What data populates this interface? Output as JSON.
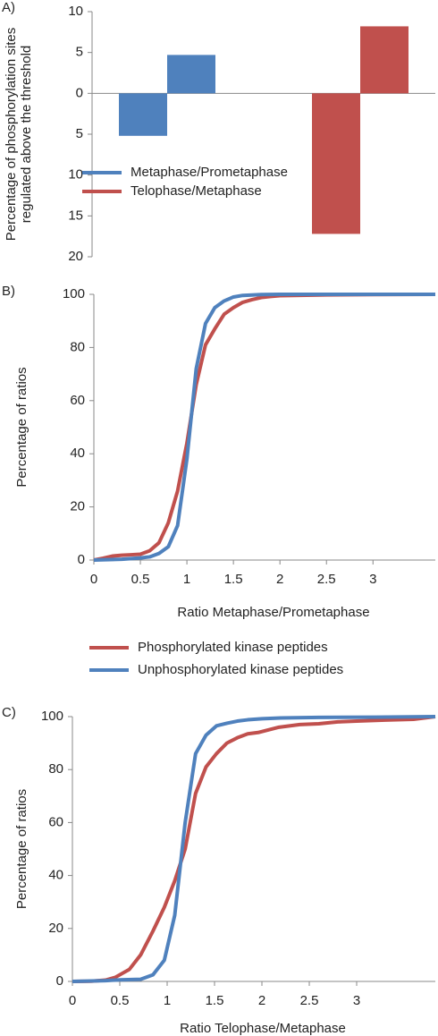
{
  "chart_data": [
    {
      "type": "bar",
      "panel_label": "A)",
      "ylabel": [
        "Percentage of phosphorylation sites",
        "regulated above the threshold"
      ],
      "categories": [
        null,
        null,
        null,
        null
      ],
      "series": [
        {
          "name": "Metaphase/Prometaphase",
          "color": "#4f81bd",
          "values": [
            -5.2,
            4.7,
            null,
            null
          ]
        },
        {
          "name": "Telophase/Metaphase",
          "color": "#c0504d",
          "values": [
            null,
            null,
            -17.2,
            8.2
          ]
        }
      ],
      "ylim": [
        -20,
        10
      ],
      "yticks": [
        10,
        5,
        0,
        {
          "value": -5,
          "label": "5"
        },
        {
          "value": -10,
          "label": "10"
        },
        {
          "value": -15,
          "label": "15"
        },
        {
          "value": -20,
          "label": "20"
        }
      ]
    },
    {
      "type": "line",
      "panel_label": "B)",
      "xlabel": "Ratio Metaphase/Prometaphase",
      "ylabel": "Percentage of ratios",
      "series": [
        {
          "name": "Phosphorylated kinase peptides",
          "color": "#c0504d",
          "x": [
            0,
            0.1,
            0.2,
            0.3,
            0.4,
            0.5,
            0.6,
            0.7,
            0.8,
            0.9,
            1.0,
            1.1,
            1.2,
            1.3,
            1.4,
            1.5,
            1.6,
            1.7,
            1.8,
            1.9,
            2.0,
            2.5,
            3.0,
            3.67
          ],
          "values": [
            0,
            0.7,
            1.5,
            1.8,
            2,
            2.2,
            3.5,
            6.5,
            14,
            26,
            44,
            66,
            81,
            87,
            92.5,
            95,
            97,
            98,
            98.8,
            99.2,
            99.5,
            99.8,
            99.9,
            100
          ]
        },
        {
          "name": "Unphosphorylated kinase peptides",
          "color": "#4f81bd",
          "x": [
            0,
            0.3,
            0.5,
            0.6,
            0.7,
            0.8,
            0.9,
            1.0,
            1.1,
            1.2,
            1.3,
            1.4,
            1.5,
            1.6,
            1.8,
            2.0,
            3.67
          ],
          "values": [
            0,
            0.3,
            0.8,
            1.2,
            2.5,
            5,
            13,
            38,
            72,
            89,
            95,
            97.5,
            99,
            99.6,
            99.9,
            100,
            100
          ]
        }
      ],
      "xlim": [
        0,
        3.67
      ],
      "xticks": [
        0,
        0.5,
        1,
        1.5,
        2,
        2.5,
        3
      ],
      "ylim": [
        0,
        100
      ],
      "yticks": [
        0,
        20,
        40,
        60,
        80,
        100
      ]
    },
    {
      "type": "line",
      "panel_label": "C)",
      "xlabel": "Ratio Telophase/Metaphase",
      "ylabel": "Percentage of ratios",
      "series": [
        {
          "color": "#c0504d",
          "x": [
            0,
            0.2,
            0.35,
            0.45,
            0.6,
            0.72,
            0.85,
            0.97,
            1.08,
            1.19,
            1.3,
            1.41,
            1.52,
            1.63,
            1.74,
            1.85,
            1.96,
            2.07,
            2.18,
            2.4,
            2.6,
            2.8,
            3.0,
            3.3,
            3.6,
            3.83
          ],
          "values": [
            0,
            0.1,
            0.5,
            1.5,
            4.5,
            10,
            19,
            28,
            38,
            50,
            71,
            81,
            86,
            90,
            92,
            93.5,
            94,
            95,
            96,
            97,
            97.3,
            98,
            98.3,
            98.7,
            99,
            100
          ]
        },
        {
          "color": "#4f81bd",
          "x": [
            0,
            0.35,
            0.5,
            0.72,
            0.85,
            0.97,
            1.08,
            1.19,
            1.3,
            1.41,
            1.52,
            1.63,
            1.74,
            1.85,
            2.0,
            2.2,
            2.6,
            3.2,
            3.83
          ],
          "values": [
            0,
            0.3,
            0.6,
            0.8,
            2.5,
            8,
            25,
            60,
            86,
            93,
            96.5,
            97.5,
            98.3,
            98.8,
            99.2,
            99.5,
            99.7,
            99.8,
            100
          ]
        }
      ],
      "xlim": [
        0,
        3.83
      ],
      "xticks": [
        0,
        0.5,
        1,
        1.5,
        2,
        2.5,
        3
      ],
      "ylim": [
        0,
        100
      ],
      "yticks": [
        0,
        20,
        40,
        60,
        80,
        100
      ]
    }
  ]
}
